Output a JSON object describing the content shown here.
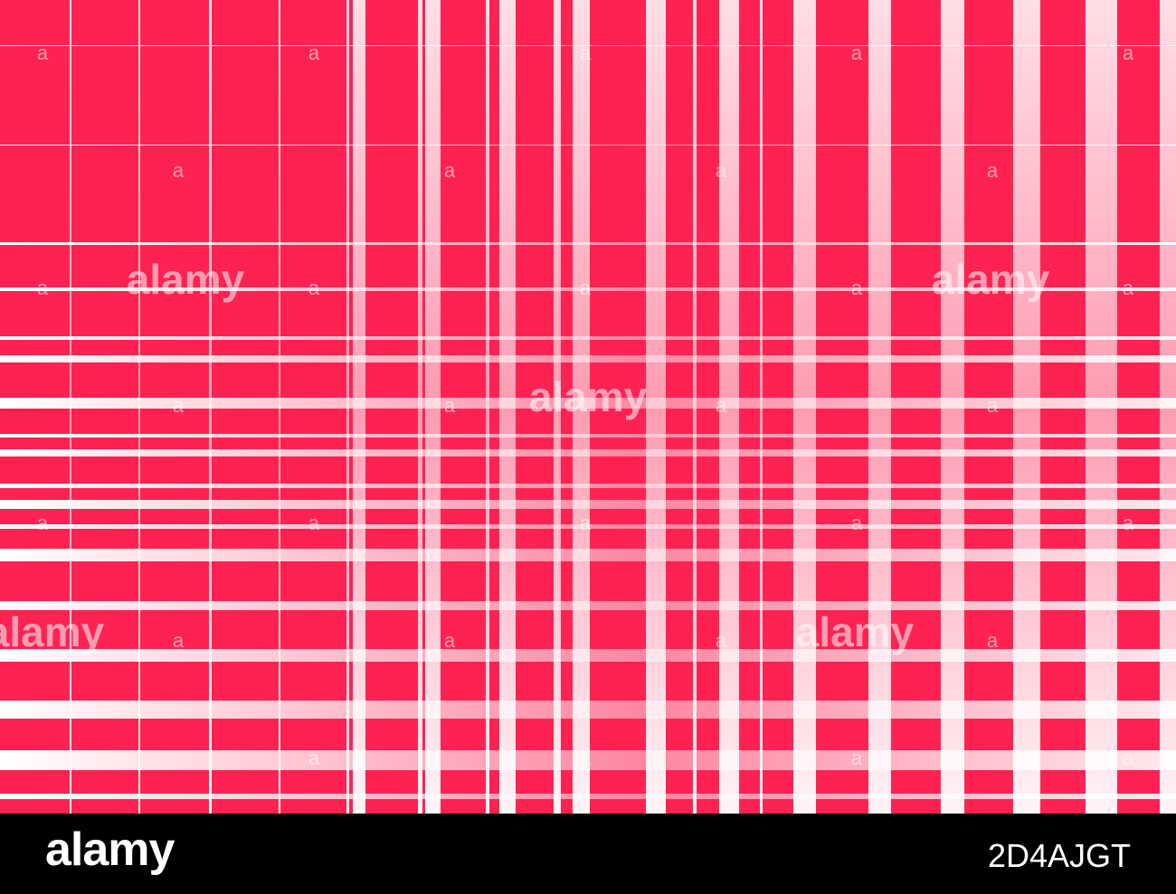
{
  "footer": {
    "logo": "alamy",
    "image_id": "2D4AJGT"
  },
  "watermark": {
    "large": "alamy",
    "small": "a"
  }
}
